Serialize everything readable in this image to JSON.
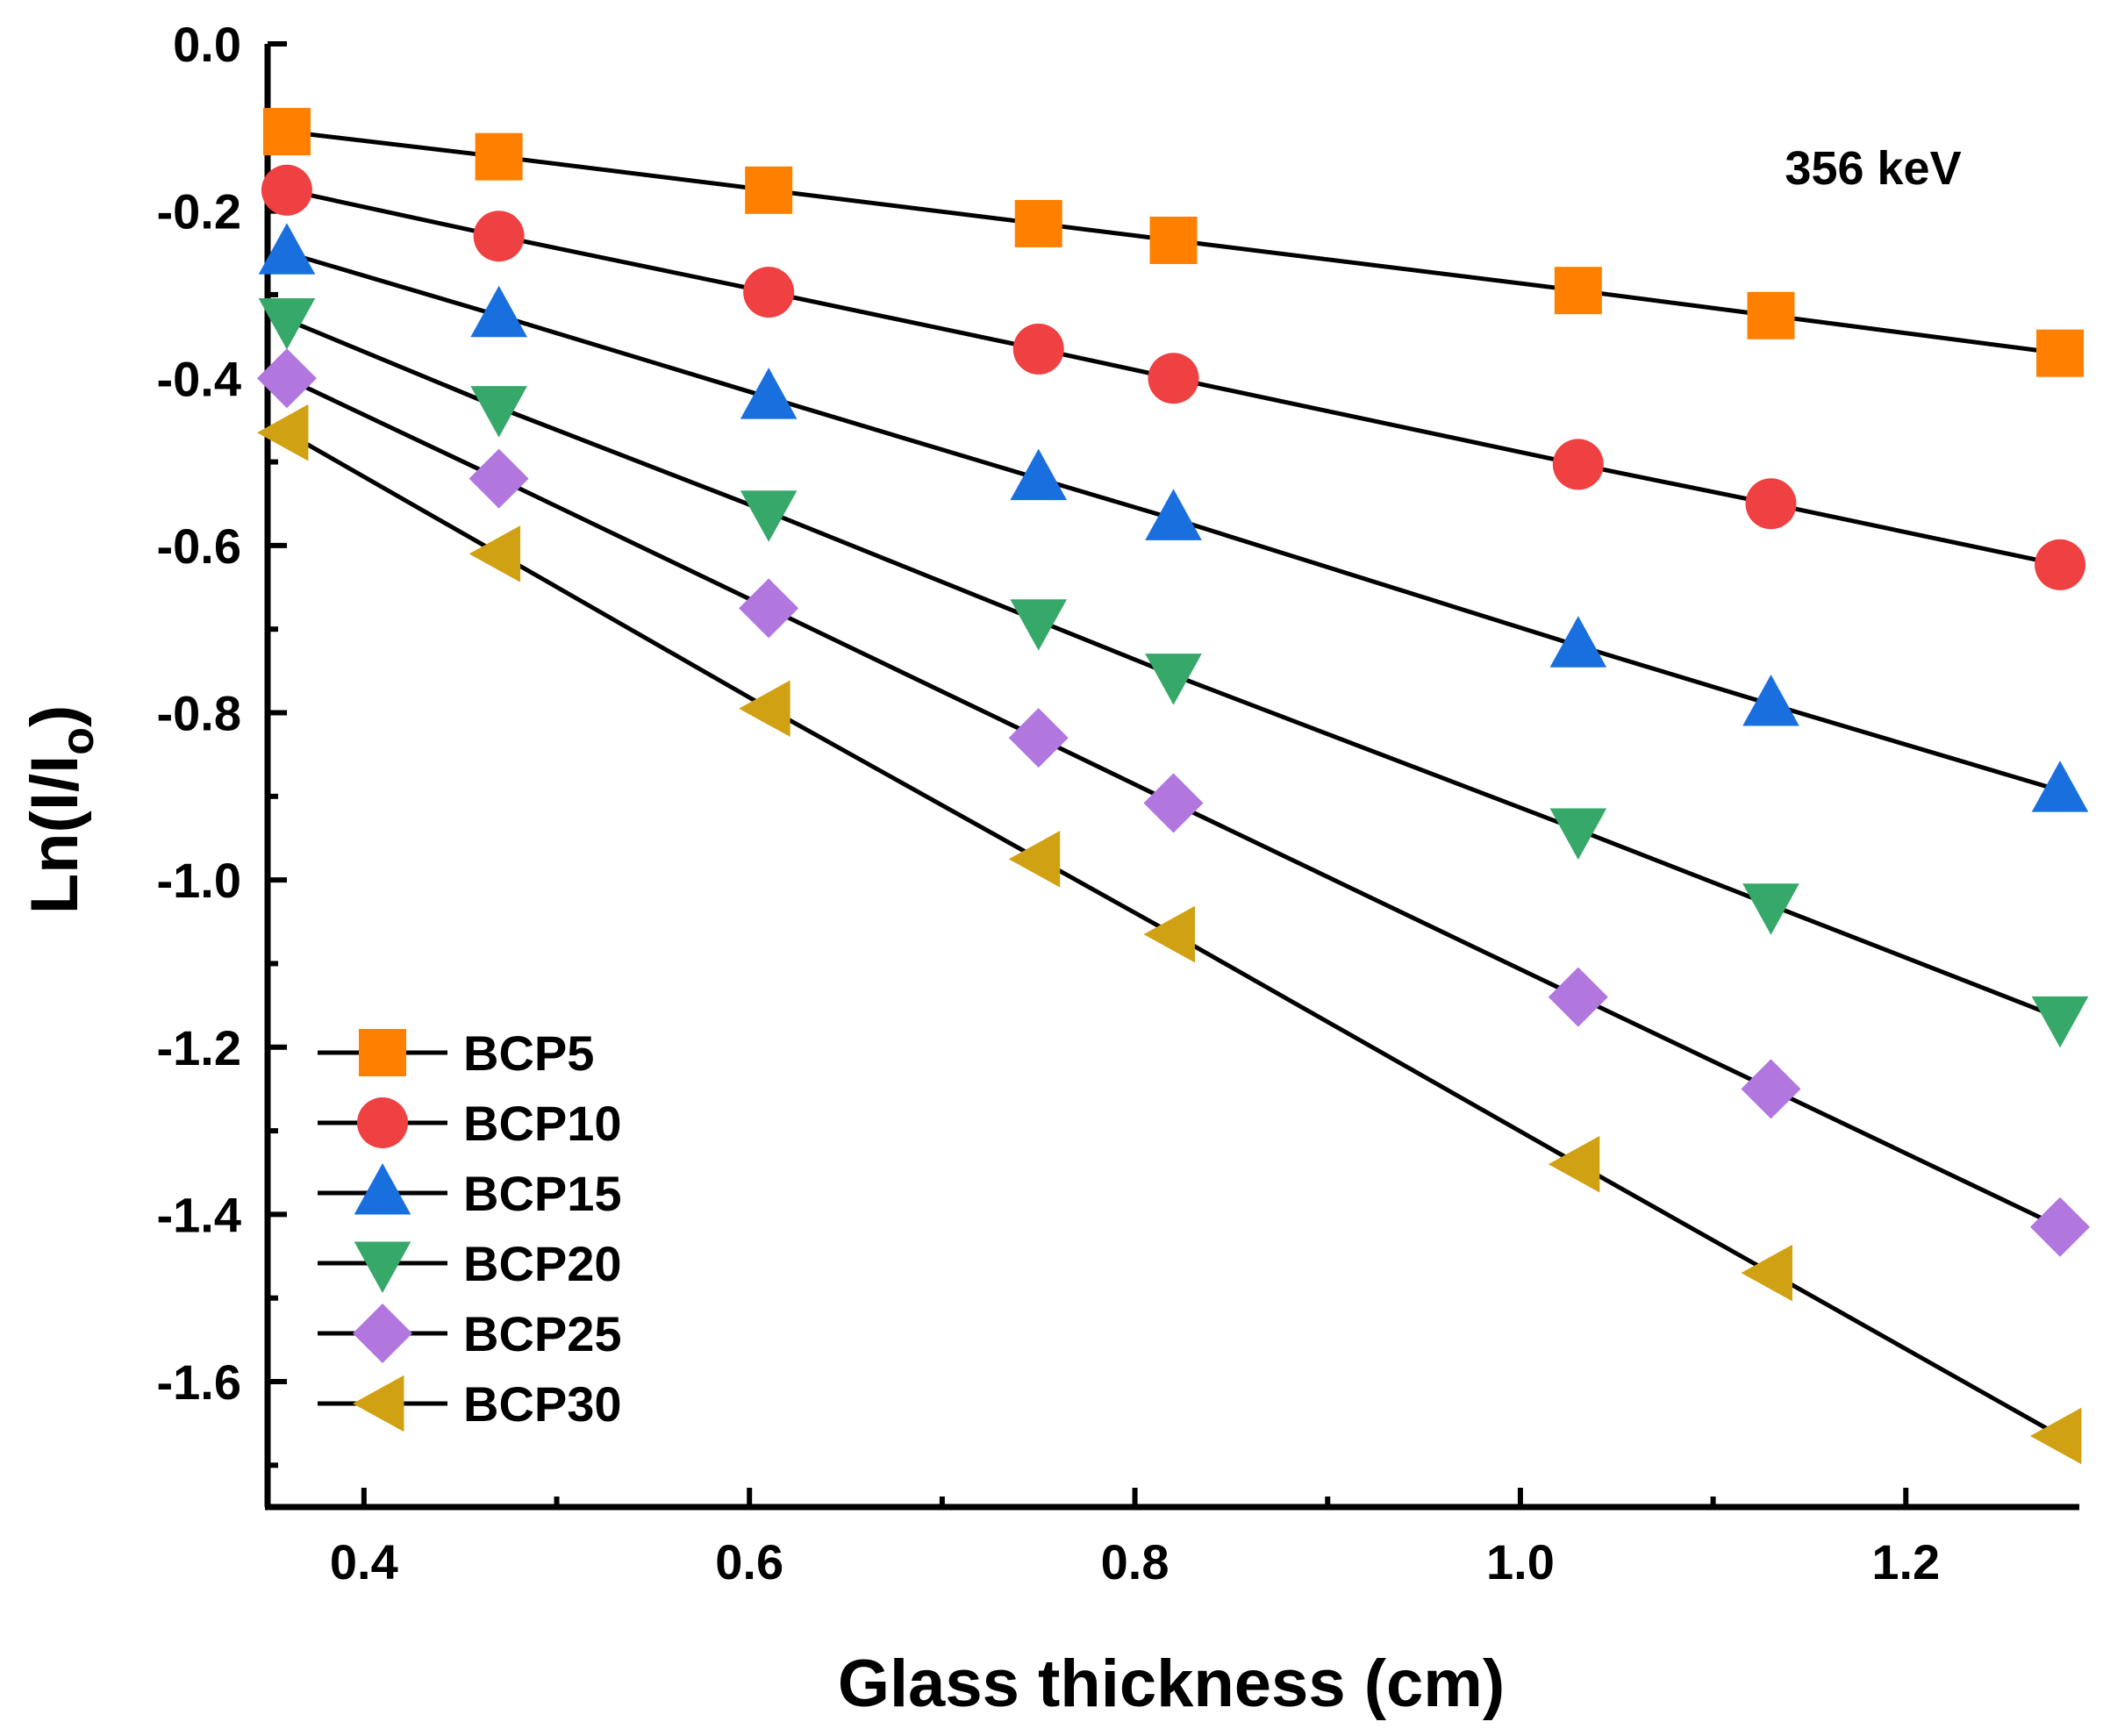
{
  "chart_data": {
    "type": "line",
    "title": "",
    "xlabel": "Glass thickness (cm)",
    "ylabel_main": "Ln(I/I",
    "ylabel_sub": "o",
    "ylabel_close": ")",
    "annotation": "356 keV",
    "xlim": [
      0.35,
      1.29
    ],
    "ylim": [
      -1.75,
      0.0
    ],
    "xticks": [
      0.4,
      0.6,
      0.8,
      1.0,
      1.2
    ],
    "xtick_labels": [
      "0.4",
      "0.6",
      "0.8",
      "1.0",
      "1.2"
    ],
    "yticks": [
      0.0,
      -0.2,
      -0.4,
      -0.6,
      -0.8,
      -1.0,
      -1.2,
      -1.4,
      -1.6
    ],
    "ytick_labels": [
      "0.0",
      "-0.2",
      "-0.4",
      "-0.6",
      "-0.8",
      "-1.0",
      "-1.2",
      "-1.4",
      "-1.6"
    ],
    "grid": false,
    "legend_position": "bottom-left",
    "x": [
      0.36,
      0.47,
      0.61,
      0.75,
      0.82,
      1.03,
      1.13,
      1.28
    ],
    "series": [
      {
        "name": "BCP5",
        "marker": "square",
        "color": "#FF8000",
        "values": [
          -0.105,
          -0.135,
          -0.175,
          -0.215,
          -0.235,
          -0.295,
          -0.325,
          -0.37
        ]
      },
      {
        "name": "BCP10",
        "marker": "circle",
        "color": "#EF4042",
        "values": [
          -0.175,
          -0.23,
          -0.297,
          -0.365,
          -0.4,
          -0.503,
          -0.55,
          -0.623
        ]
      },
      {
        "name": "BCP15",
        "marker": "triangle-up",
        "color": "#1A6FDF",
        "values": [
          -0.25,
          -0.325,
          -0.423,
          -0.52,
          -0.568,
          -0.72,
          -0.79,
          -0.893
        ]
      },
      {
        "name": "BCP20",
        "marker": "triangle-down",
        "color": "#36A869",
        "values": [
          -0.33,
          -0.435,
          -0.56,
          -0.69,
          -0.755,
          -0.94,
          -1.03,
          -1.165
        ]
      },
      {
        "name": "BCP25",
        "marker": "diamond",
        "color": "#B177DE",
        "values": [
          -0.4,
          -0.52,
          -0.675,
          -0.83,
          -0.908,
          -1.14,
          -1.25,
          -1.415
        ]
      },
      {
        "name": "BCP30",
        "marker": "triangle-left",
        "color": "#D1A114",
        "values": [
          -0.465,
          -0.61,
          -0.795,
          -0.975,
          -1.065,
          -1.34,
          -1.47,
          -1.665
        ]
      }
    ]
  }
}
